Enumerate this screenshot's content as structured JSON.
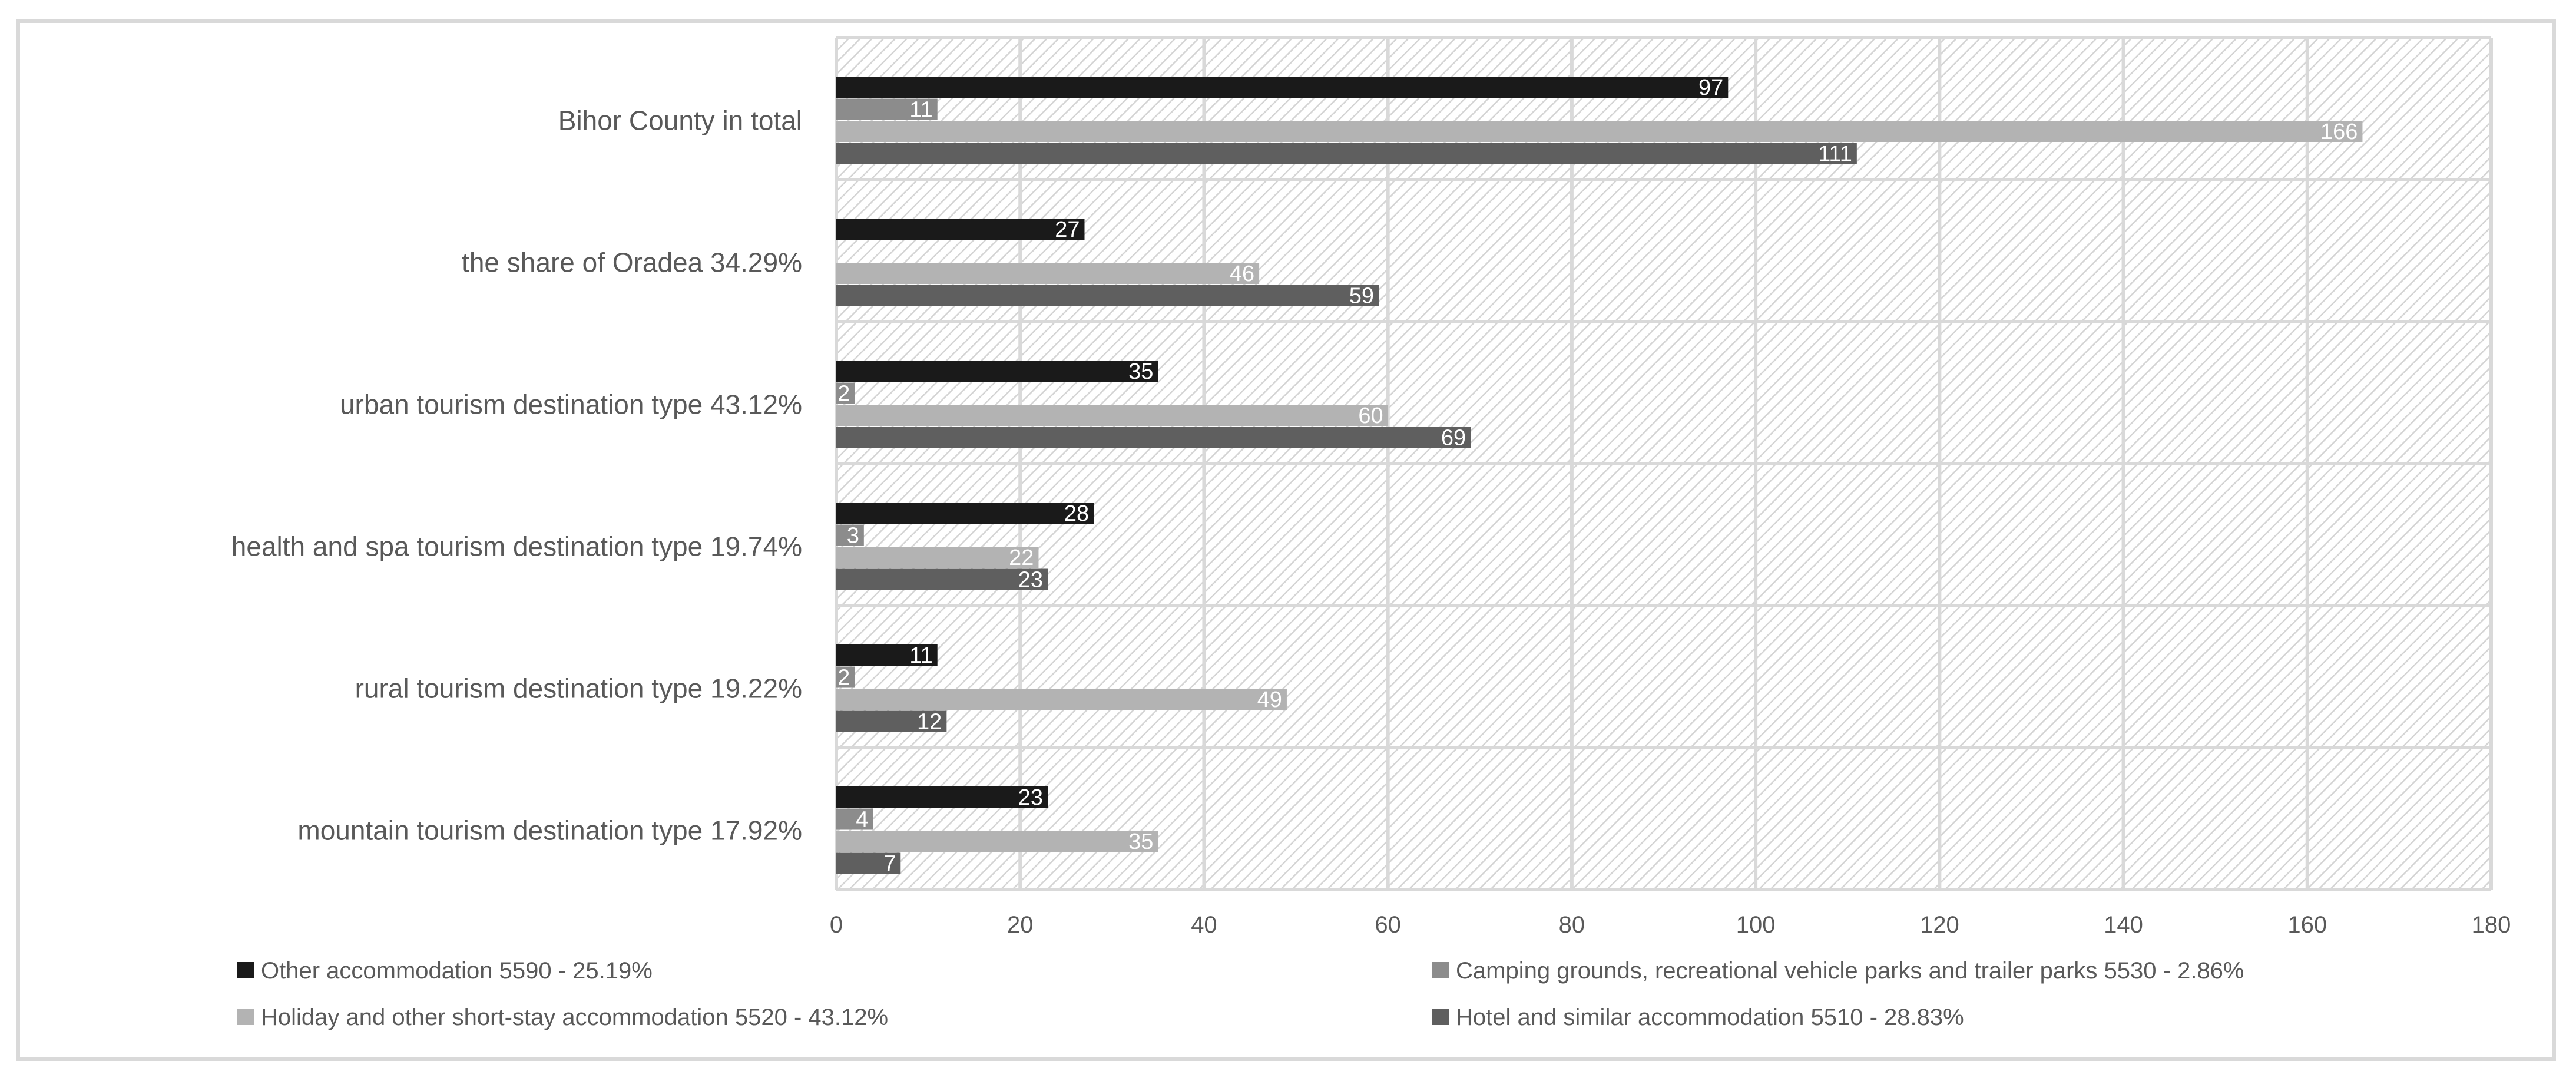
{
  "chart_data": {
    "type": "bar",
    "orientation": "horizontal",
    "title": "",
    "xlabel": "",
    "ylabel": "",
    "xlim": [
      0,
      180
    ],
    "xticks": [
      0,
      20,
      40,
      60,
      80,
      100,
      120,
      140,
      160,
      180
    ],
    "grid": true,
    "legend_position": "bottom",
    "categories": [
      "Bihor County in total",
      "the share of Oradea 34.29%",
      "urban tourism destination type 43.12%",
      "health and spa tourism destination type 19.74%",
      "rural tourism destination type  19.22%",
      "mountain tourism destination type  17.92%"
    ],
    "series": [
      {
        "name": "Other accommodation 5590 - 25.19%",
        "color": "#1a1a1a",
        "values": [
          97,
          27,
          35,
          28,
          11,
          23
        ]
      },
      {
        "name": "Camping grounds, recreational vehicle parks and trailer parks 5530 - 2.86%",
        "color": "#8c8c8c",
        "values": [
          11,
          null,
          2,
          3,
          2,
          4
        ]
      },
      {
        "name": "Holiday and other short-stay accommodation 5520 - 43.12%",
        "color": "#b3b3b3",
        "values": [
          166,
          46,
          60,
          22,
          49,
          35
        ]
      },
      {
        "name": "Hotel and similar accommodation 5510 - 28.83%",
        "color": "#5f5f5f",
        "values": [
          111,
          59,
          69,
          23,
          12,
          7
        ]
      }
    ]
  }
}
